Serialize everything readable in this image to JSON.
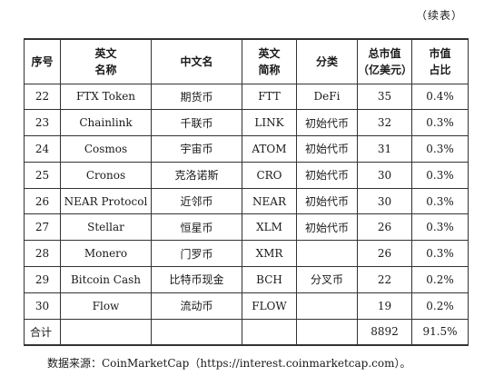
{
  "continued": "（续表）",
  "headers": [
    {
      "l1": "序号",
      "l2": ""
    },
    {
      "l1": "英文",
      "l2": "名称"
    },
    {
      "l1": "中文名",
      "l2": ""
    },
    {
      "l1": "英文",
      "l2": "简称"
    },
    {
      "l1": "分类",
      "l2": ""
    },
    {
      "l1": "总市值",
      "l2": "（亿美元）"
    },
    {
      "l1": "市值",
      "l2": "占比"
    }
  ],
  "rows": [
    {
      "no": "22",
      "en": "FTX Token",
      "zh": "期货币",
      "sym": "FTT",
      "cat": "DeFi",
      "cap": "35",
      "share": "0.4%"
    },
    {
      "no": "23",
      "en": "Chainlink",
      "zh": "千联币",
      "sym": "LINK",
      "cat": "初始代币",
      "cap": "32",
      "share": "0.3%"
    },
    {
      "no": "24",
      "en": "Cosmos",
      "zh": "宇宙币",
      "sym": "ATOM",
      "cat": "初始代币",
      "cap": "31",
      "share": "0.3%"
    },
    {
      "no": "25",
      "en": "Cronos",
      "zh": "克洛诺斯",
      "sym": "CRO",
      "cat": "初始代币",
      "cap": "30",
      "share": "0.3%"
    },
    {
      "no": "26",
      "en": "NEAR Protocol",
      "zh": "近邻币",
      "sym": "NEAR",
      "cat": "初始代币",
      "cap": "30",
      "share": "0.3%"
    },
    {
      "no": "27",
      "en": "Stellar",
      "zh": "恒星币",
      "sym": "XLM",
      "cat": "初始代币",
      "cap": "26",
      "share": "0.3%"
    },
    {
      "no": "28",
      "en": "Monero",
      "zh": "门罗币",
      "sym": "XMR",
      "cat": "",
      "cap": "26",
      "share": "0.3%"
    },
    {
      "no": "29",
      "en": "Bitcoin Cash",
      "zh": "比特币现金",
      "sym": "BCH",
      "cat": "分叉币",
      "cap": "22",
      "share": "0.2%"
    },
    {
      "no": "30",
      "en": "Flow",
      "zh": "流动币",
      "sym": "FLOW",
      "cat": "",
      "cap": "19",
      "share": "0.2%"
    }
  ],
  "total": {
    "label": "合计",
    "cap": "8892",
    "share": "91.5%"
  },
  "source": "数据来源：CoinMarketCap（https://interest.coinmarketcap.com）。"
}
